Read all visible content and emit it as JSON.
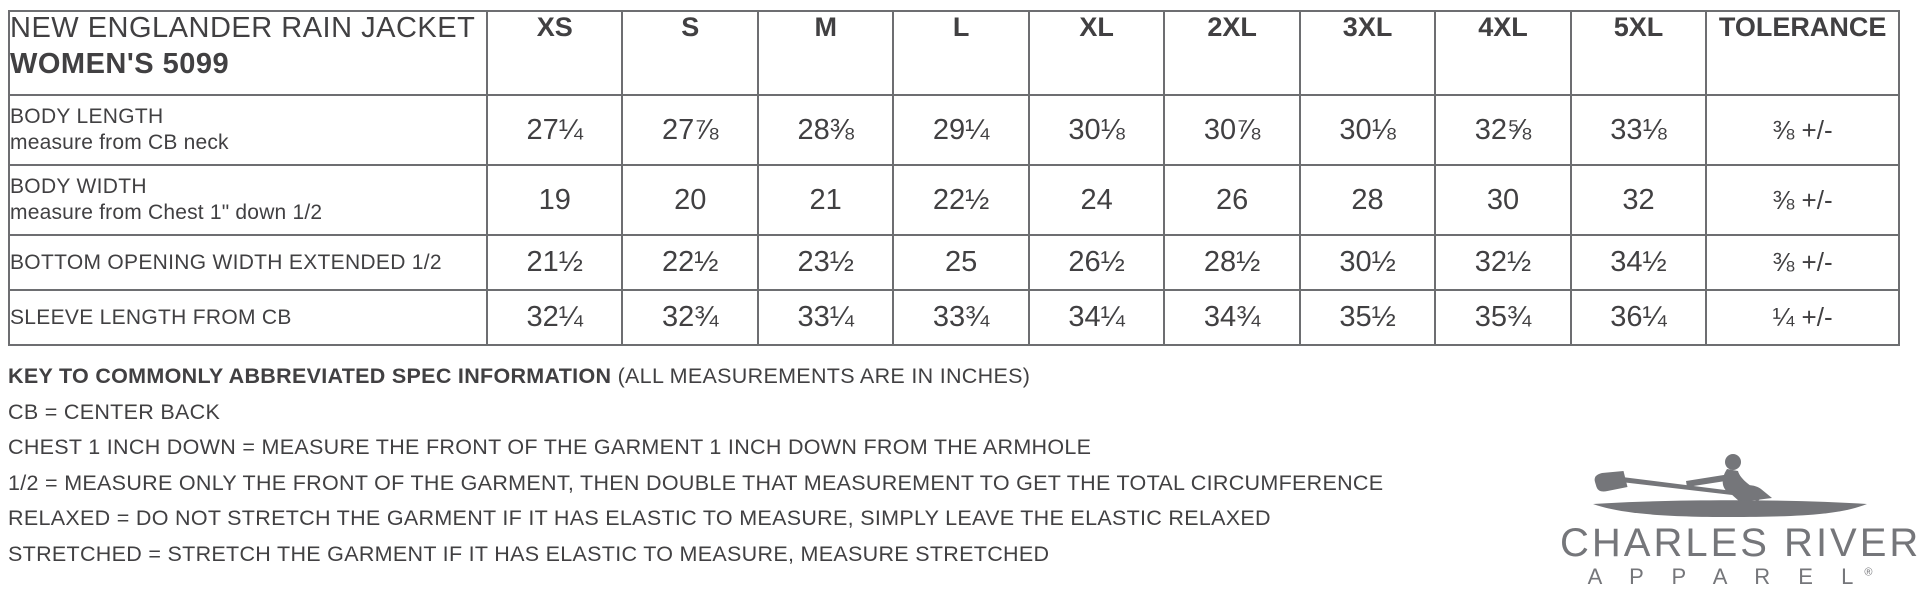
{
  "table": {
    "product_title_line1": "NEW ENGLANDER RAIN JACKET",
    "product_title_line2": "WOMEN'S 5099",
    "size_headers": [
      "XS",
      "S",
      "M",
      "L",
      "XL",
      "2XL",
      "3XL",
      "4XL",
      "5XL"
    ],
    "tolerance_header": "TOLERANCE",
    "rows": [
      {
        "label": "BODY LENGTH",
        "sublabel": "measure from CB neck",
        "values": [
          "27¼",
          "27⅞",
          "28⅜",
          "29¼",
          "30⅛",
          "30⅞",
          "30⅛",
          "32⅝",
          "33⅛"
        ],
        "tolerance": "⅜ +/-"
      },
      {
        "label": "BODY WIDTH",
        "sublabel": "measure from Chest 1\" down 1/2",
        "values": [
          "19",
          "20",
          "21",
          "22½",
          "24",
          "26",
          "28",
          "30",
          "32"
        ],
        "tolerance": "⅜ +/-"
      },
      {
        "label": "BOTTOM OPENING WIDTH EXTENDED 1/2",
        "sublabel": "",
        "values": [
          "21½",
          "22½",
          "23½",
          "25",
          "26½",
          "28½",
          "30½",
          "32½",
          "34½"
        ],
        "tolerance": "⅜ +/-"
      },
      {
        "label": "SLEEVE LENGTH FROM CB",
        "sublabel": "",
        "values": [
          "32¼",
          "32¾",
          "33¼",
          "33¾",
          "34¼",
          "34¾",
          "35½",
          "35¾",
          "36¼"
        ],
        "tolerance": "¼ +/-"
      }
    ]
  },
  "key": {
    "title_bold": "KEY TO COMMONLY ABBREVIATED SPEC INFORMATION",
    "title_normal": " (ALL MEASUREMENTS ARE IN INCHES)",
    "lines": [
      "CB = CENTER BACK",
      "CHEST 1 INCH DOWN = MEASURE THE FRONT OF THE GARMENT 1 INCH DOWN FROM THE ARMHOLE",
      "1/2 = MEASURE ONLY THE FRONT OF THE GARMENT, THEN DOUBLE THAT MEASUREMENT TO GET THE TOTAL CIRCUMFERENCE",
      "RELAXED = DO NOT STRETCH THE GARMENT IF IT HAS ELASTIC TO MEASURE, SIMPLY LEAVE THE ELASTIC RELAXED",
      "STRETCHED = STRETCH THE GARMENT IF IT HAS ELASTIC TO MEASURE, MEASURE STRETCHED"
    ]
  },
  "logo": {
    "brand_line1": "CHARLES RIVER",
    "brand_line2": "A P P A R E L",
    "registered_mark": "®",
    "color": "#75767a"
  },
  "colors": {
    "text": "#414042",
    "border": "#6d6e71",
    "background": "#ffffff"
  }
}
